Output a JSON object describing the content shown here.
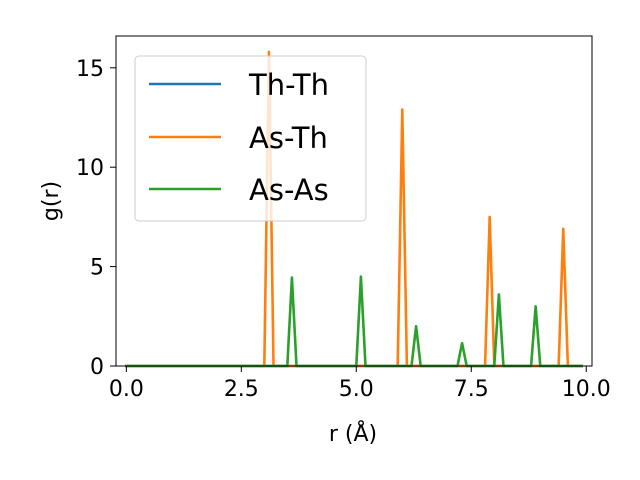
{
  "chart_data": {
    "type": "line",
    "xlabel": "r (Å)",
    "ylabel": "g(r)",
    "xlim": [
      -0.225,
      10.125
    ],
    "ylim": [
      0,
      16.6
    ],
    "xticks": [
      0.0,
      2.5,
      5.0,
      7.5,
      10.0
    ],
    "xtick_labels": [
      "0.0",
      "2.5",
      "5.0",
      "7.5",
      "10.0"
    ],
    "yticks": [
      0,
      5,
      10,
      15
    ],
    "ytick_labels": [
      "0",
      "5",
      "10",
      "15"
    ],
    "grid": false,
    "legend_position": "top-left",
    "series": [
      {
        "name": "Th-Th",
        "color": "#1f77b4",
        "x": [
          0.0,
          9.9
        ],
        "y": [
          0.0,
          0.0
        ]
      },
      {
        "name": "As-Th",
        "color": "#ff7f0e",
        "x": [
          0.0,
          3.0,
          3.1,
          3.2,
          5.9,
          6.0,
          6.1,
          7.8,
          7.9,
          8.0,
          9.4,
          9.5,
          9.6,
          9.9
        ],
        "y": [
          0.0,
          0.0,
          15.8,
          0.0,
          0.0,
          12.9,
          0.0,
          0.0,
          7.5,
          0.0,
          0.0,
          6.9,
          0.0,
          0.0
        ]
      },
      {
        "name": "As-As",
        "color": "#2ca02c",
        "x": [
          0.0,
          3.5,
          3.6,
          3.7,
          5.0,
          5.1,
          5.2,
          6.2,
          6.3,
          6.4,
          7.2,
          7.3,
          7.4,
          8.0,
          8.1,
          8.2,
          8.8,
          8.9,
          9.0,
          9.9
        ],
        "y": [
          0.0,
          0.0,
          4.45,
          0.0,
          0.0,
          4.5,
          0.0,
          0.0,
          2.0,
          0.0,
          0.0,
          1.15,
          0.0,
          0.0,
          3.6,
          0.0,
          0.0,
          3.0,
          0.0,
          0.0
        ]
      }
    ]
  }
}
